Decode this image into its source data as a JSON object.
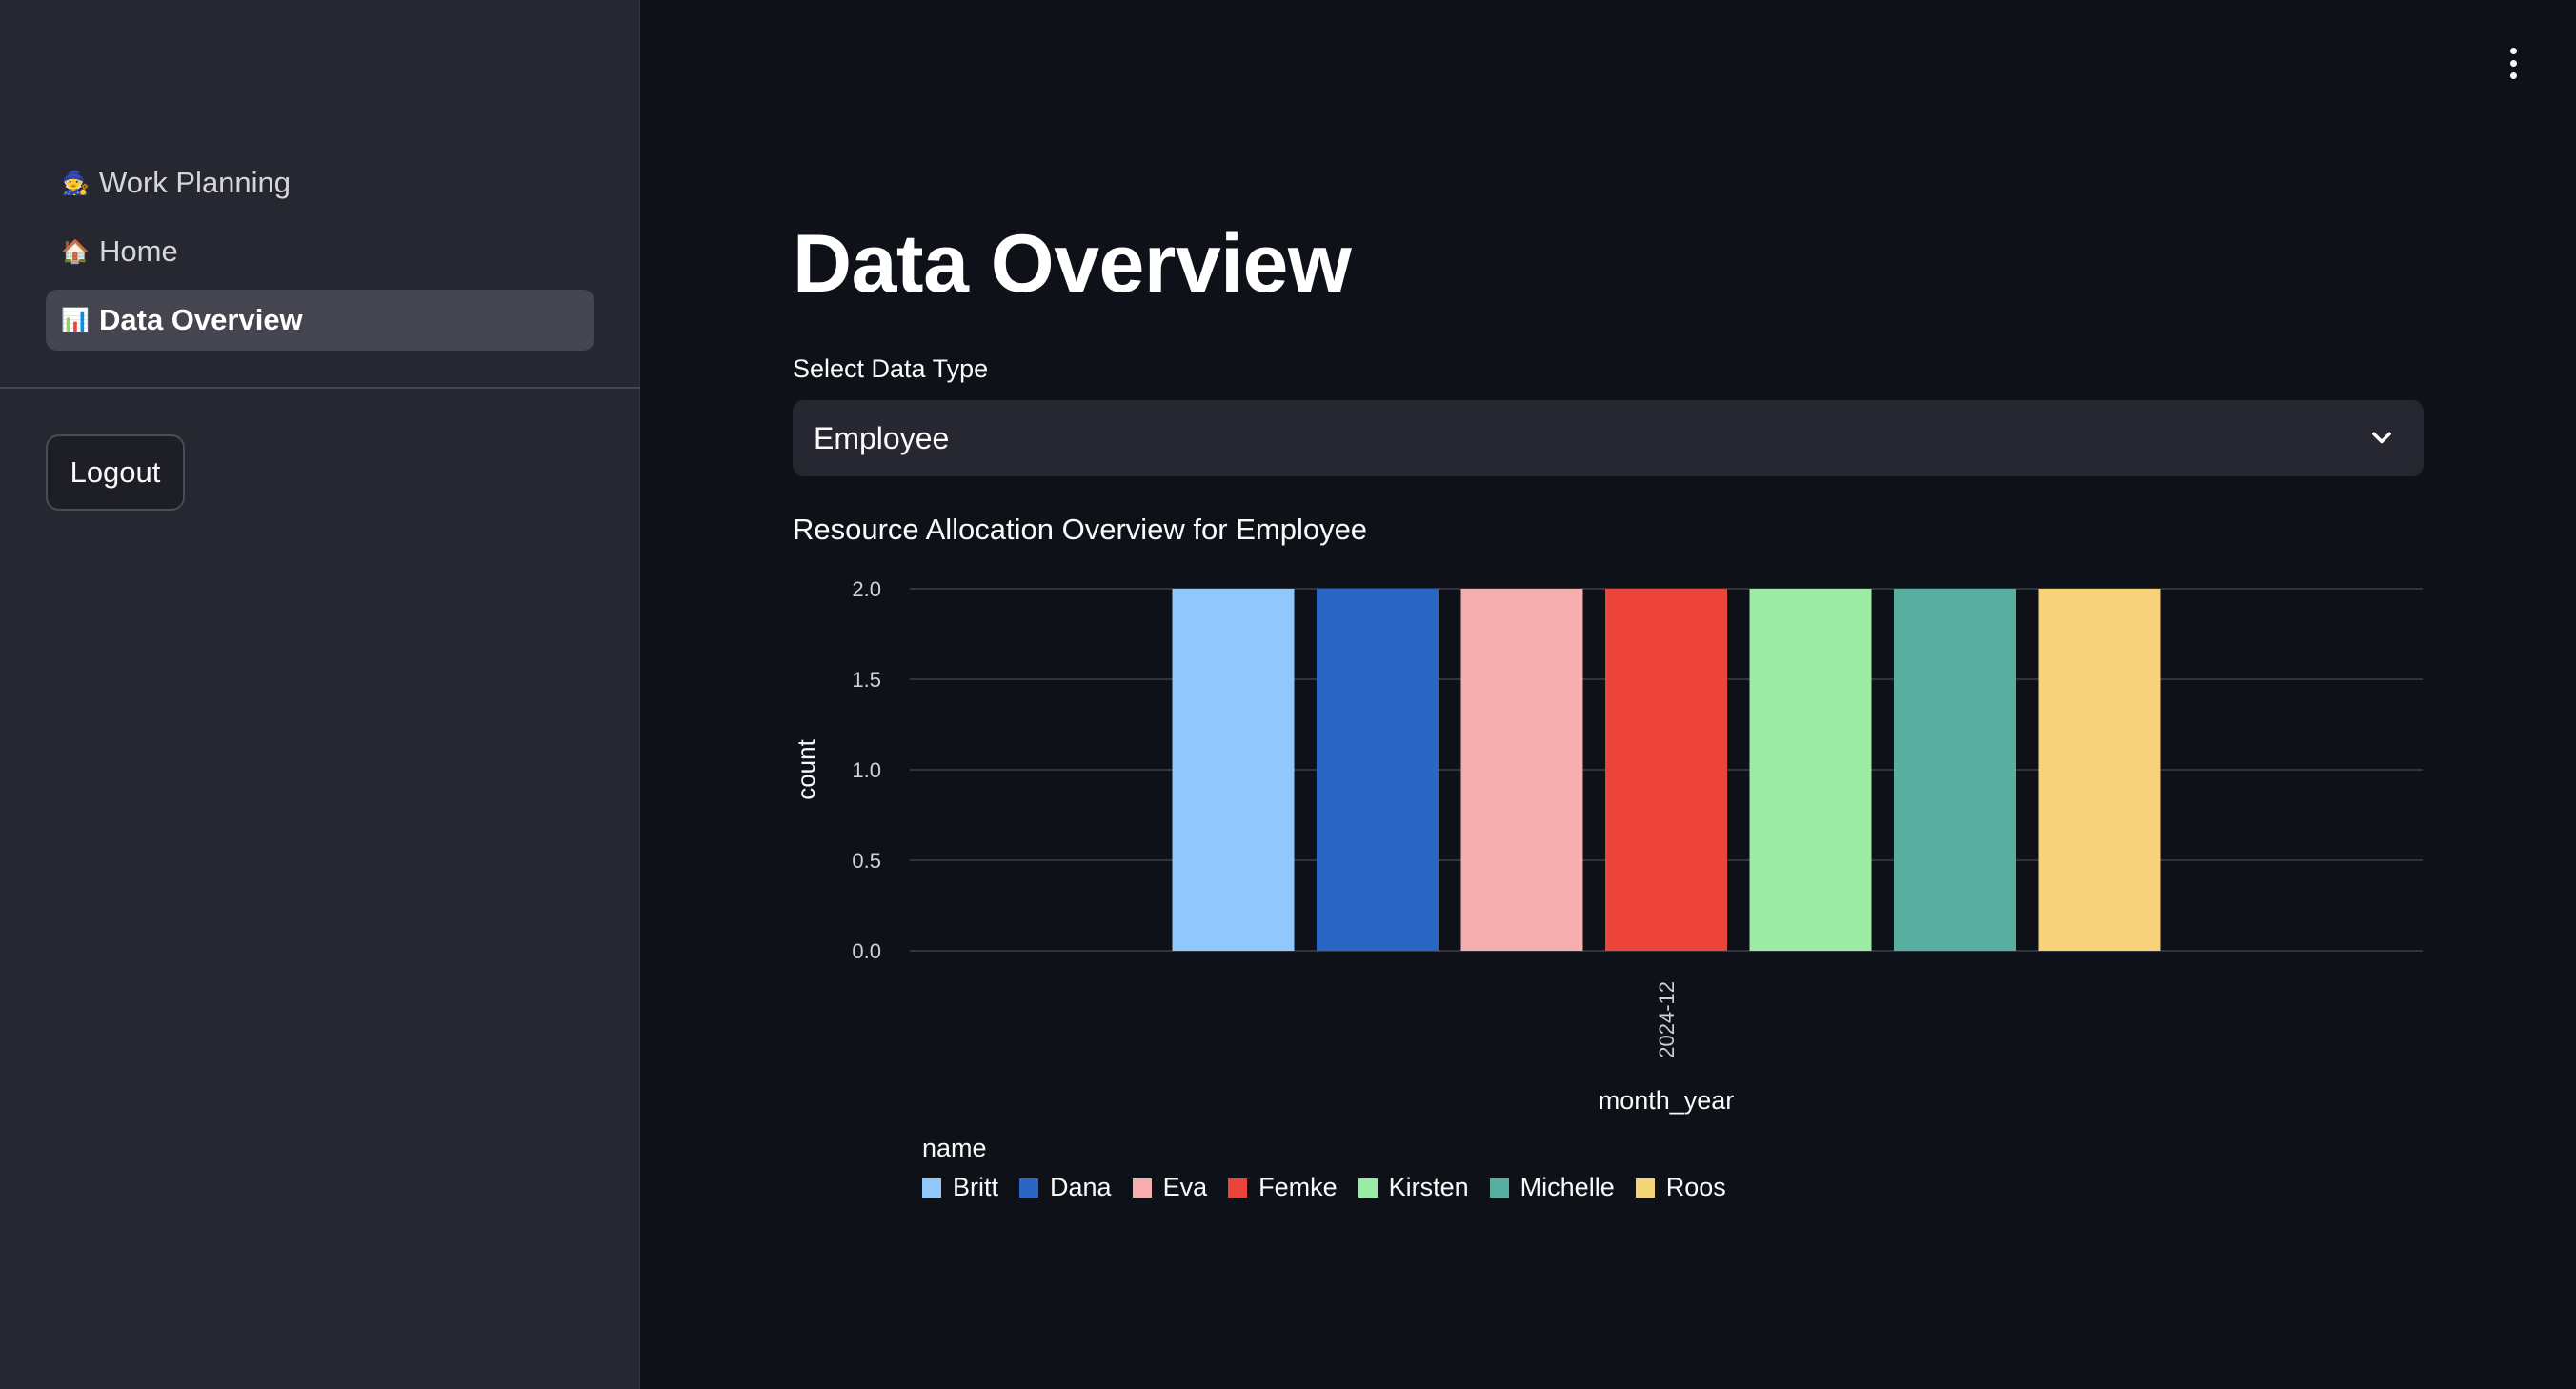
{
  "sidebar": {
    "items": [
      {
        "icon": "🧙",
        "icon_name": "wizard-icon",
        "label": "Work Planning",
        "active": false
      },
      {
        "icon": "🏠",
        "icon_name": "house-icon",
        "label": "Home",
        "active": false
      },
      {
        "icon": "📊",
        "icon_name": "bar-chart-icon",
        "label": "Data Overview",
        "active": true
      }
    ],
    "logout_label": "Logout"
  },
  "main": {
    "title": "Data Overview",
    "select": {
      "label": "Select Data Type",
      "value": "Employee"
    },
    "chart_title": "Resource Allocation Overview for Employee"
  },
  "chart_data": {
    "type": "bar",
    "title": "",
    "xlabel": "month_year",
    "ylabel": "count",
    "ylim": [
      0,
      2
    ],
    "yticks": [
      "0.0",
      "0.5",
      "1.0",
      "1.5",
      "2.0"
    ],
    "categories": [
      "2024-12"
    ],
    "grid": true,
    "legend_title": "name",
    "legend_position": "bottom-left",
    "series": [
      {
        "name": "Britt",
        "color": "#90c8fb",
        "values": [
          2
        ]
      },
      {
        "name": "Dana",
        "color": "#2b66c4",
        "values": [
          2
        ]
      },
      {
        "name": "Eva",
        "color": "#f5adae",
        "values": [
          2
        ]
      },
      {
        "name": "Femke",
        "color": "#ec433b",
        "values": [
          2
        ]
      },
      {
        "name": "Kirsten",
        "color": "#9ceba4",
        "values": [
          2
        ]
      },
      {
        "name": "Michelle",
        "color": "#58afa0",
        "values": [
          2
        ]
      },
      {
        "name": "Roos",
        "color": "#f7d27a",
        "values": [
          2
        ]
      }
    ]
  }
}
